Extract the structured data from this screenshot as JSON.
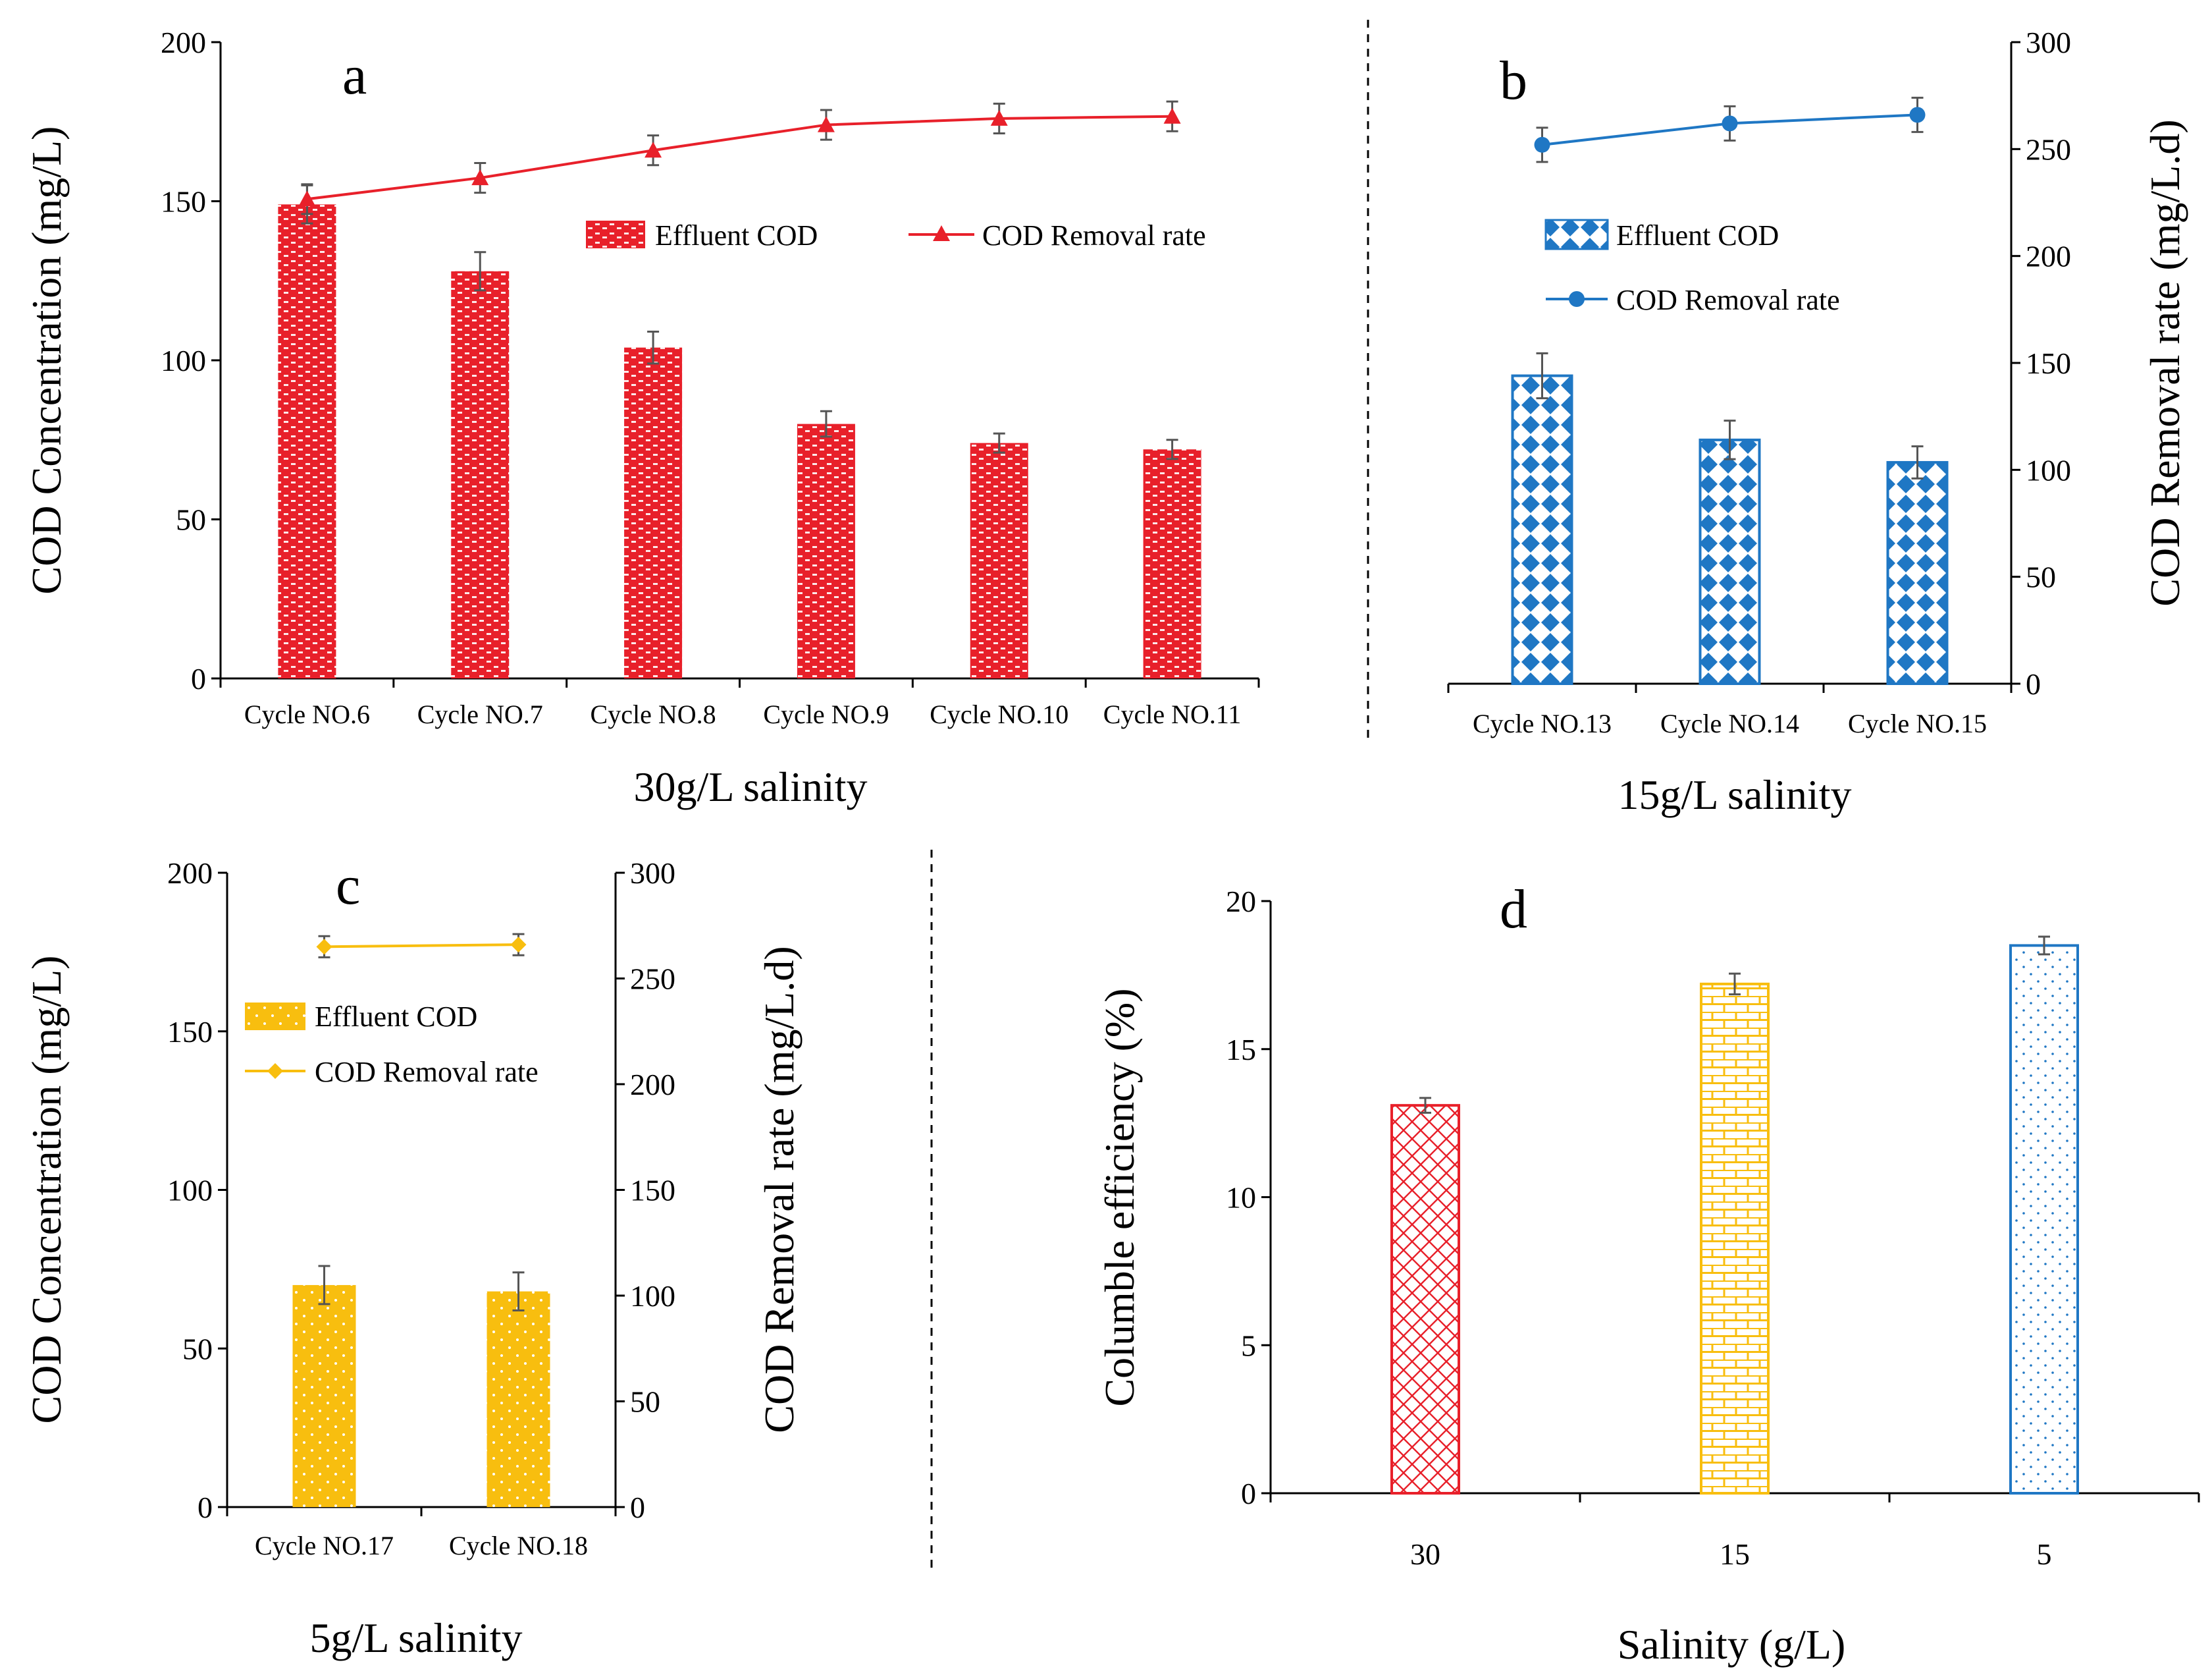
{
  "colors": {
    "red": "#e8202a",
    "blue": "#1f77c4",
    "yellow": "#f8be0f",
    "axis": "#000000",
    "errorbar": "#555555"
  },
  "chart_data": [
    {
      "id": "a",
      "panel_label": "a",
      "type": "bar+line",
      "xlabel": "30g/L salinity",
      "ylabel": "COD Concentration (mg/L)",
      "ylim": [
        0,
        200
      ],
      "yticks": [
        "0",
        "50",
        "100",
        "150",
        "200"
      ],
      "y2label": "",
      "y2lim": [
        0,
        300
      ],
      "categories": [
        "Cycle NO.6",
        "Cycle NO.7",
        "Cycle NO.8",
        "Cycle NO.9",
        "Cycle NO.10",
        "Cycle NO.11"
      ],
      "series": [
        {
          "name": "Effluent COD",
          "kind": "bar",
          "axis": "left",
          "pattern": "bricks",
          "color": "#e8202a",
          "values": [
            149,
            128,
            104,
            80,
            74,
            72
          ],
          "errors": [
            6,
            6,
            5,
            4,
            3,
            3
          ]
        },
        {
          "name": "COD Removal rate",
          "kind": "line",
          "axis": "right",
          "marker": "triangle",
          "color": "#e8202a",
          "values": [
            226,
            236,
            249,
            261,
            264,
            265
          ],
          "errors": [
            7,
            7,
            7,
            7,
            7,
            7
          ]
        }
      ],
      "legend": "top-right"
    },
    {
      "id": "b",
      "panel_label": "b",
      "type": "bar+line",
      "xlabel": "15g/L salinity",
      "ylabel": "",
      "ylim": [
        0,
        200
      ],
      "y2label": "COD Removal rate (mg/L.d)",
      "y2lim": [
        0,
        300
      ],
      "y2ticks": [
        "0",
        "50",
        "100",
        "150",
        "200",
        "250",
        "300"
      ],
      "categories": [
        "Cycle NO.13",
        "Cycle NO.14",
        "Cycle NO.15"
      ],
      "series": [
        {
          "name": "Effluent COD",
          "kind": "bar",
          "axis": "left",
          "pattern": "diamonds",
          "color": "#1f77c4",
          "values": [
            96,
            76,
            69
          ],
          "errors": [
            7,
            6,
            5
          ]
        },
        {
          "name": "COD Removal rate",
          "kind": "line",
          "axis": "right",
          "marker": "circle",
          "color": "#1f77c4",
          "values": [
            252,
            262,
            266
          ],
          "errors": [
            8,
            8,
            8
          ]
        }
      ],
      "legend": "top-left"
    },
    {
      "id": "c",
      "panel_label": "c",
      "type": "bar+line",
      "xlabel": "5g/L salinity",
      "ylabel": "COD Concentration (mg/L)",
      "ylim": [
        0,
        200
      ],
      "yticks": [
        "0",
        "50",
        "100",
        "150",
        "200"
      ],
      "y2label": "COD Removal rate (mg/L.d)",
      "y2lim": [
        0,
        300
      ],
      "y2ticks": [
        "0",
        "50",
        "100",
        "150",
        "200",
        "250",
        "300"
      ],
      "categories": [
        "Cycle NO.17",
        "Cycle NO.18"
      ],
      "series": [
        {
          "name": "Effluent COD",
          "kind": "bar",
          "axis": "left",
          "pattern": "dots",
          "color": "#f8be0f",
          "values": [
            70,
            68
          ],
          "errors": [
            6,
            6
          ]
        },
        {
          "name": "COD Removal rate",
          "kind": "line",
          "axis": "right",
          "marker": "diamond",
          "color": "#f8be0f",
          "values": [
            265,
            266
          ],
          "errors": [
            5,
            5
          ]
        }
      ],
      "legend": "top-left"
    },
    {
      "id": "d",
      "panel_label": "d",
      "type": "bar",
      "xlabel": "Salinity (g/L)",
      "ylabel": "Columble efficiency (%)",
      "ylim": [
        0,
        20
      ],
      "yticks": [
        "0",
        "5",
        "10",
        "15",
        "20"
      ],
      "categories": [
        "30",
        "15",
        "5"
      ],
      "series": [
        {
          "name": "Columble efficiency",
          "kind": "bar",
          "axis": "left",
          "values": [
            13.1,
            17.2,
            18.5
          ],
          "errors": [
            0.25,
            0.35,
            0.3
          ],
          "patterns": [
            "crosshatch",
            "bricks",
            "dots"
          ],
          "colors": [
            "#e8202a",
            "#f8be0f",
            "#1f77c4"
          ]
        }
      ]
    }
  ]
}
